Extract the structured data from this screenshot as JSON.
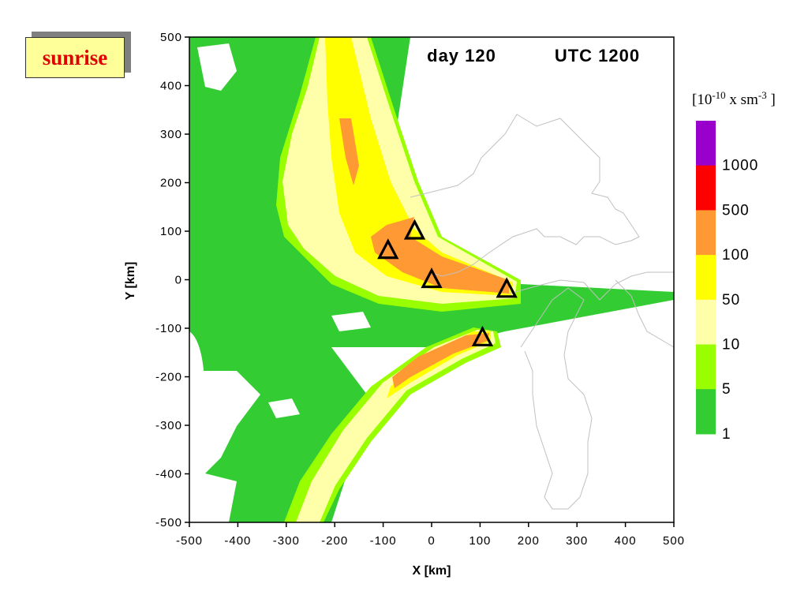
{
  "badge": {
    "text": "sunrise"
  },
  "colorbar": {
    "unit_base": "[10",
    "unit_exp1": "-10",
    "unit_mid": " x sm",
    "unit_exp2": "-3",
    "unit_end": " ]",
    "labels": [
      "1000",
      "500",
      "100",
      "50",
      "10",
      "5",
      "1"
    ],
    "colors": [
      "#9900cc",
      "#ff0000",
      "#ff9933",
      "#ffff00",
      "#ffffaa",
      "#99ff00",
      "#33cc33"
    ]
  },
  "chart_data": {
    "type": "heatmap",
    "title_left": "day 120",
    "title_right": "UTC 1200",
    "xlabel": "X [km]",
    "ylabel": "Y [km]",
    "xlim": [
      -500,
      500
    ],
    "ylim": [
      -500,
      500
    ],
    "x_ticks": [
      -500,
      -400,
      -300,
      -200,
      -100,
      0,
      100,
      200,
      300,
      400,
      500
    ],
    "y_ticks": [
      -500,
      -400,
      -300,
      -200,
      -100,
      0,
      100,
      200,
      300,
      400,
      500
    ],
    "contour_levels": [
      1,
      5,
      10,
      50,
      100,
      500,
      1000
    ],
    "sources": [
      {
        "x": -35,
        "y": 100
      },
      {
        "x": -90,
        "y": 60
      },
      {
        "x": 0,
        "y": 0
      },
      {
        "x": 155,
        "y": -20
      },
      {
        "x": 105,
        "y": -120
      }
    ],
    "grid": false
  }
}
